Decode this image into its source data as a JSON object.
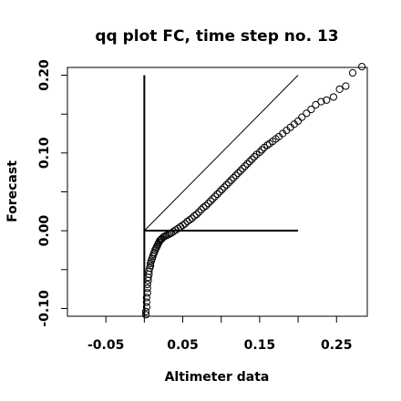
{
  "chart_data": {
    "type": "scatter",
    "title": "qq plot FC, time step no. 13",
    "xlabel": "Altimeter data",
    "ylabel": "Forecast",
    "xlim": [
      -0.1,
      0.29
    ],
    "ylim": [
      -0.11,
      0.21
    ],
    "x_ticks": [
      -0.05,
      0.05,
      0.15,
      0.25
    ],
    "x_tick_labels": [
      "-0.05",
      "0.05",
      "0.15",
      "0.25"
    ],
    "x_minor_ticks": [
      -0.05,
      0.0,
      0.05,
      0.1,
      0.15,
      0.2,
      0.25
    ],
    "y_ticks": [
      -0.1,
      0.0,
      0.1,
      0.2
    ],
    "y_tick_labels": [
      "-0.10",
      "0.00",
      "0.10",
      "0.20"
    ],
    "y_minor_ticks": [
      -0.1,
      -0.05,
      0.0,
      0.05,
      0.1,
      0.15,
      0.2
    ],
    "reference_lines": [
      {
        "name": "identity",
        "x": [
          0.0,
          0.2
        ],
        "y": [
          0.0,
          0.2
        ]
      },
      {
        "name": "vertical",
        "x": [
          0.0,
          0.0
        ],
        "y": [
          -0.11,
          0.2
        ]
      },
      {
        "name": "horizontal",
        "x": [
          0.0,
          0.2
        ],
        "y": [
          0.0,
          0.0
        ]
      }
    ],
    "points": [
      [
        0.002,
        -0.108
      ],
      [
        0.002,
        -0.104
      ],
      [
        0.003,
        -0.098
      ],
      [
        0.003,
        -0.092
      ],
      [
        0.003,
        -0.086
      ],
      [
        0.004,
        -0.08
      ],
      [
        0.004,
        -0.074
      ],
      [
        0.004,
        -0.069
      ],
      [
        0.005,
        -0.064
      ],
      [
        0.005,
        -0.06
      ],
      [
        0.006,
        -0.056
      ],
      [
        0.006,
        -0.052
      ],
      [
        0.007,
        -0.048
      ],
      [
        0.008,
        -0.045
      ],
      [
        0.008,
        -0.042
      ],
      [
        0.009,
        -0.039
      ],
      [
        0.01,
        -0.036
      ],
      [
        0.011,
        -0.033
      ],
      [
        0.012,
        -0.03
      ],
      [
        0.013,
        -0.028
      ],
      [
        0.014,
        -0.025
      ],
      [
        0.015,
        -0.023
      ],
      [
        0.016,
        -0.021
      ],
      [
        0.017,
        -0.019
      ],
      [
        0.018,
        -0.017
      ],
      [
        0.019,
        -0.015
      ],
      [
        0.02,
        -0.013
      ],
      [
        0.021,
        -0.012
      ],
      [
        0.022,
        -0.011
      ],
      [
        0.023,
        -0.01
      ],
      [
        0.025,
        -0.008
      ],
      [
        0.027,
        -0.007
      ],
      [
        0.029,
        -0.006
      ],
      [
        0.031,
        -0.005
      ],
      [
        0.033,
        -0.004
      ],
      [
        0.035,
        -0.003
      ],
      [
        0.038,
        -0.001
      ],
      [
        0.041,
        0.001
      ],
      [
        0.044,
        0.003
      ],
      [
        0.047,
        0.005
      ],
      [
        0.05,
        0.007
      ],
      [
        0.053,
        0.009
      ],
      [
        0.056,
        0.012
      ],
      [
        0.059,
        0.014
      ],
      [
        0.062,
        0.016
      ],
      [
        0.065,
        0.019
      ],
      [
        0.068,
        0.021
      ],
      [
        0.071,
        0.024
      ],
      [
        0.074,
        0.027
      ],
      [
        0.077,
        0.03
      ],
      [
        0.08,
        0.032
      ],
      [
        0.083,
        0.035
      ],
      [
        0.086,
        0.038
      ],
      [
        0.089,
        0.041
      ],
      [
        0.092,
        0.044
      ],
      [
        0.095,
        0.047
      ],
      [
        0.098,
        0.05
      ],
      [
        0.101,
        0.053
      ],
      [
        0.104,
        0.056
      ],
      [
        0.107,
        0.059
      ],
      [
        0.11,
        0.062
      ],
      [
        0.113,
        0.065
      ],
      [
        0.116,
        0.068
      ],
      [
        0.119,
        0.071
      ],
      [
        0.122,
        0.074
      ],
      [
        0.125,
        0.077
      ],
      [
        0.128,
        0.08
      ],
      [
        0.131,
        0.083
      ],
      [
        0.134,
        0.086
      ],
      [
        0.137,
        0.089
      ],
      [
        0.14,
        0.092
      ],
      [
        0.143,
        0.095
      ],
      [
        0.146,
        0.098
      ],
      [
        0.15,
        0.101
      ],
      [
        0.153,
        0.104
      ],
      [
        0.156,
        0.107
      ],
      [
        0.16,
        0.11
      ],
      [
        0.163,
        0.112
      ],
      [
        0.167,
        0.115
      ],
      [
        0.171,
        0.118
      ],
      [
        0.175,
        0.121
      ],
      [
        0.18,
        0.125
      ],
      [
        0.185,
        0.129
      ],
      [
        0.19,
        0.133
      ],
      [
        0.195,
        0.137
      ],
      [
        0.2,
        0.141
      ],
      [
        0.205,
        0.146
      ],
      [
        0.211,
        0.151
      ],
      [
        0.217,
        0.156
      ],
      [
        0.223,
        0.162
      ],
      [
        0.23,
        0.166
      ],
      [
        0.237,
        0.168
      ],
      [
        0.246,
        0.172
      ],
      [
        0.254,
        0.182
      ],
      [
        0.262,
        0.186
      ],
      [
        0.271,
        0.203
      ],
      [
        0.283,
        0.211
      ]
    ]
  }
}
